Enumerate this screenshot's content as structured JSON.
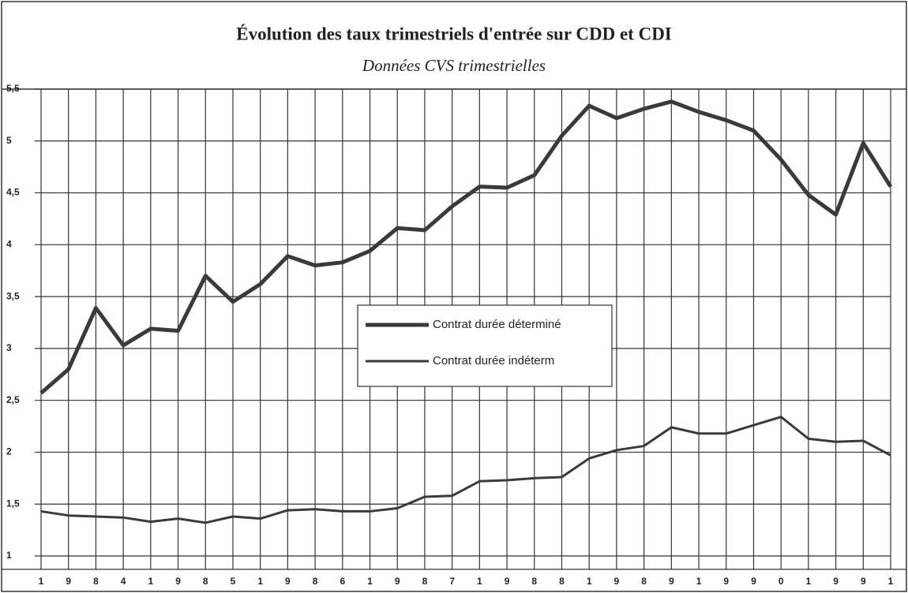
{
  "chart_data": {
    "type": "line",
    "title": "Évolution des taux trimestriels d'entrée sur CDD et CDI",
    "subtitle": "Données CVS trimestrielles",
    "categories": [
      "1",
      "9",
      "8",
      "4",
      "1",
      "9",
      "8",
      "5",
      "1",
      "9",
      "8",
      "6",
      "1",
      "9",
      "8",
      "7",
      "1",
      "9",
      "8",
      "8",
      "1",
      "9",
      "8",
      "9",
      "1",
      "9",
      "9",
      "0",
      "1",
      "9",
      "9",
      "1"
    ],
    "series": [
      {
        "name": "Contrat durée déterminé",
        "color": "#3a3a3a",
        "width": 5,
        "values": [
          2.57,
          2.8,
          3.39,
          3.03,
          3.19,
          3.17,
          3.7,
          3.45,
          3.62,
          3.89,
          3.8,
          3.83,
          3.94,
          4.16,
          4.14,
          4.37,
          4.56,
          4.55,
          4.67,
          5.05,
          5.34,
          5.22,
          5.31,
          5.38,
          5.28,
          5.2,
          5.1,
          4.82,
          4.48,
          4.29,
          4.98,
          4.56
        ]
      },
      {
        "name": "Contrat durée indéterm",
        "color": "#3a3a3a",
        "width": 3,
        "values": [
          1.43,
          1.39,
          1.38,
          1.37,
          1.33,
          1.36,
          1.32,
          1.38,
          1.36,
          1.44,
          1.45,
          1.43,
          1.43,
          1.46,
          1.57,
          1.58,
          1.72,
          1.73,
          1.75,
          1.76,
          1.94,
          2.02,
          2.06,
          2.24,
          2.18,
          2.18,
          2.26,
          2.34,
          2.13,
          2.1,
          2.11,
          1.97
        ]
      }
    ],
    "ylim": [
      1,
      5.5
    ],
    "yticks": [
      1,
      {
        "value": 1.5,
        "label": "1,5"
      },
      2,
      {
        "value": 2.5,
        "label": "2,5"
      },
      3,
      {
        "value": 3.5,
        "label": "3,5"
      },
      4,
      {
        "value": 4.5,
        "label": "4,5"
      },
      5,
      {
        "value": 5.5,
        "label": "5,5"
      }
    ],
    "grid": true
  }
}
